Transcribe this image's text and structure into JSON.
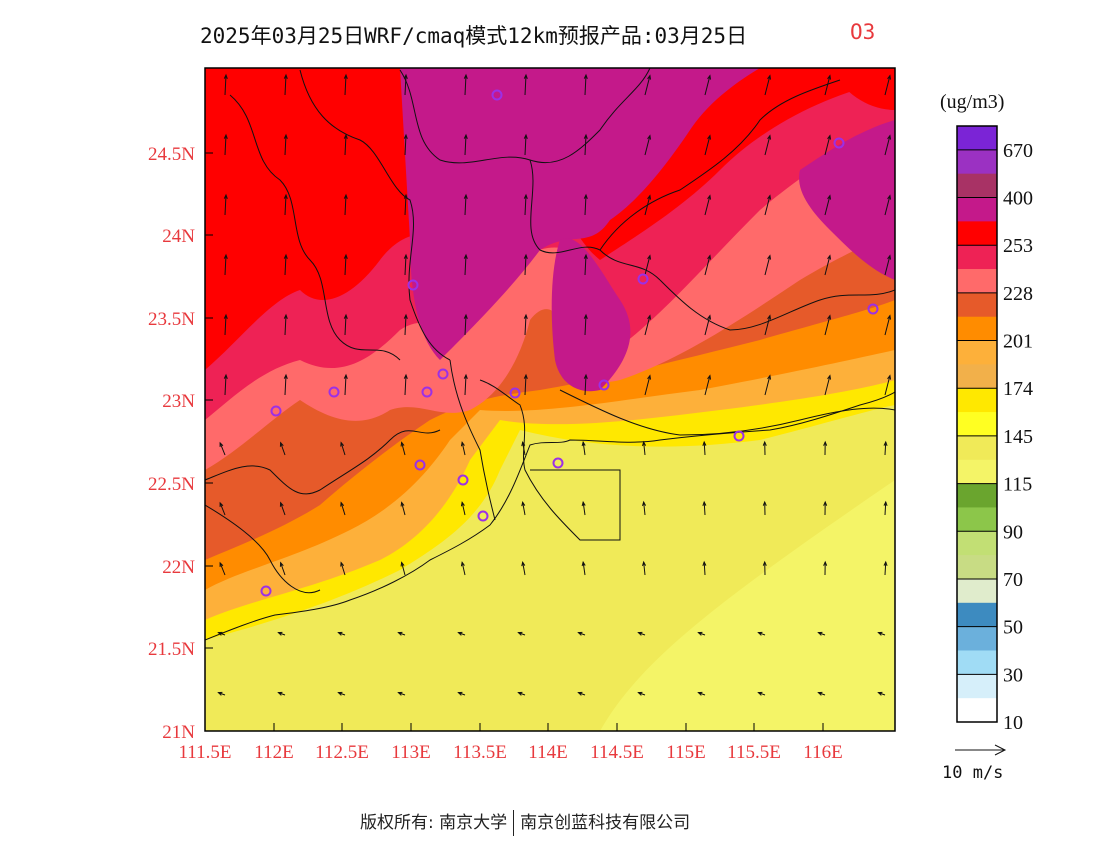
{
  "title": {
    "main": "2025年03月25日WRF/cmaq模式12km预报产品:03月25日",
    "variable": "O3"
  },
  "axes": {
    "lat_labels": [
      "21N",
      "21.5N",
      "22N",
      "22.5N",
      "23N",
      "23.5N",
      "24N",
      "24.5N"
    ],
    "lon_labels": [
      "111.5E",
      "112E",
      "112.5E",
      "113E",
      "113.5E",
      "114E",
      "114.5E",
      "115E",
      "115.5E",
      "116E"
    ]
  },
  "legend": {
    "unit": "(ug/m3)",
    "labels": [
      "670",
      "400",
      "253",
      "228",
      "201",
      "174",
      "145",
      "115",
      "90",
      "70",
      "50",
      "30",
      "10"
    ],
    "colors": [
      "#7b24d6",
      "#9b31c2",
      "#a83265",
      "#c4198a",
      "#ff0000",
      "#ee2255",
      "#ff6a6a",
      "#e65a2a",
      "#ff8c00",
      "#fdb03a",
      "#f2b04a",
      "#ffe800",
      "#ffff22",
      "#f0ea58",
      "#f4f467",
      "#6aa52e",
      "#8cc64a",
      "#c2df74",
      "#c8dc84",
      "#e0eccc",
      "#3d8bc0",
      "#6bb0dc",
      "#a0dcf5",
      "#d6effa",
      "#ffffff"
    ]
  },
  "wind_scale": {
    "label": "10 m/s"
  },
  "footer": {
    "copyright": "版权所有: 南京大学",
    "company": "南京创蓝科技有限公司"
  },
  "colors": {
    "axis_label": "#e8393d",
    "station_marker": "#9b30e6"
  }
}
